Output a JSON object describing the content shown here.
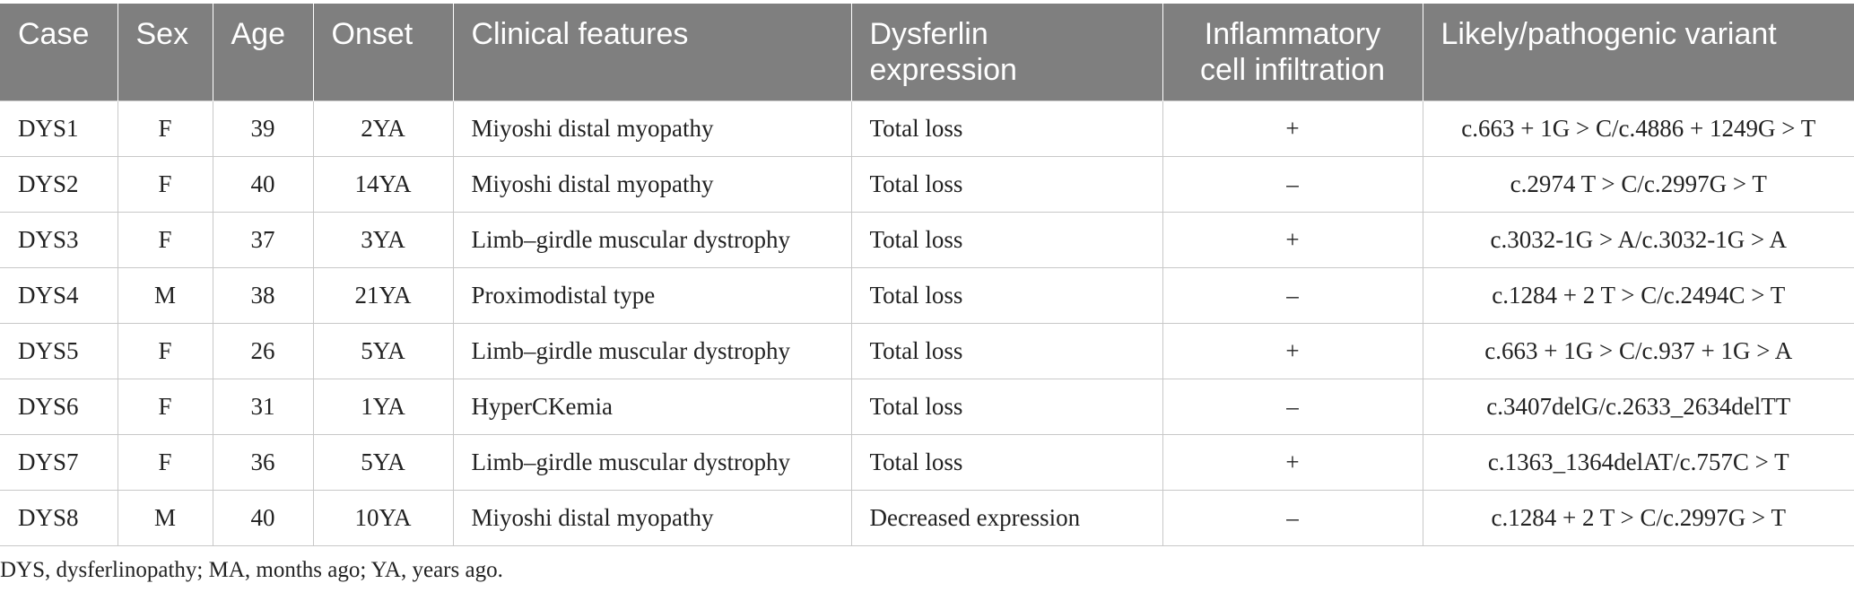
{
  "table": {
    "headers": [
      "Case",
      "Sex",
      "Age",
      "Onset",
      "Clinical features",
      "Dysferlin expression",
      "Inflammatory cell infiltration",
      "Likely/pathogenic variant"
    ],
    "rows": [
      [
        "DYS1",
        "F",
        "39",
        "2YA",
        "Miyoshi distal myopathy",
        "Total loss",
        "+",
        "c.663 + 1G > C/c.4886 + 1249G > T"
      ],
      [
        "DYS2",
        "F",
        "40",
        "14YA",
        "Miyoshi distal myopathy",
        "Total loss",
        "–",
        "c.2974 T > C/c.2997G > T"
      ],
      [
        "DYS3",
        "F",
        "37",
        "3YA",
        "Limb–girdle muscular dystrophy",
        "Total loss",
        "+",
        "c.3032-1G > A/c.3032-1G > A"
      ],
      [
        "DYS4",
        "M",
        "38",
        "21YA",
        "Proximodistal type",
        "Total loss",
        "–",
        "c.1284 + 2 T > C/c.2494C > T"
      ],
      [
        "DYS5",
        "F",
        "26",
        "5YA",
        "Limb–girdle muscular dystrophy",
        "Total loss",
        "+",
        "c.663 + 1G > C/c.937 + 1G > A"
      ],
      [
        "DYS6",
        "F",
        "31",
        "1YA",
        "HyperCKemia",
        "Total loss",
        "–",
        "c.3407delG/c.2633_2634delTT"
      ],
      [
        "DYS7",
        "F",
        "36",
        "5YA",
        "Limb–girdle muscular dystrophy",
        "Total loss",
        "+",
        "c.1363_1364delAT/c.757C > T"
      ],
      [
        "DYS8",
        "M",
        "40",
        "10YA",
        "Miyoshi distal myopathy",
        "Decreased expression",
        "–",
        "c.1284 + 2 T > C/c.2997G > T"
      ]
    ]
  },
  "footnote": "DYS, dysferlinopathy; MA, months ago; YA, years ago."
}
